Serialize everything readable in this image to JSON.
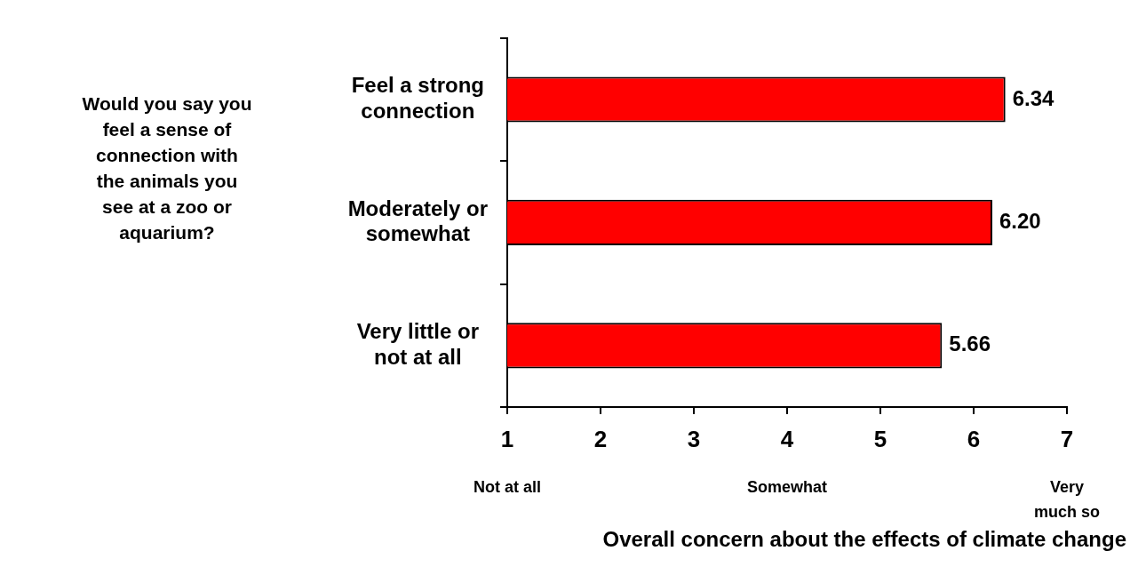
{
  "chart_data": {
    "type": "bar",
    "orientation": "horizontal",
    "categories": [
      "Feel a strong connection",
      "Moderately or somewhat",
      "Very little or not at all"
    ],
    "values": [
      6.34,
      6.2,
      5.66
    ],
    "color": "#ff0000",
    "value_labels": [
      "6.34",
      "6.20",
      "5.66"
    ],
    "xlim": [
      1,
      7
    ],
    "xticks": [
      1,
      2,
      3,
      4,
      5,
      6,
      7
    ],
    "grid": false,
    "legend": false,
    "xlabel": "Overall concern about the effects of climate change",
    "annotations": [
      "Would you say you feel a sense of connection with the animals you see at a zoo or aquarium?",
      "Not at all",
      "Somewhat",
      "Very much so"
    ]
  }
}
